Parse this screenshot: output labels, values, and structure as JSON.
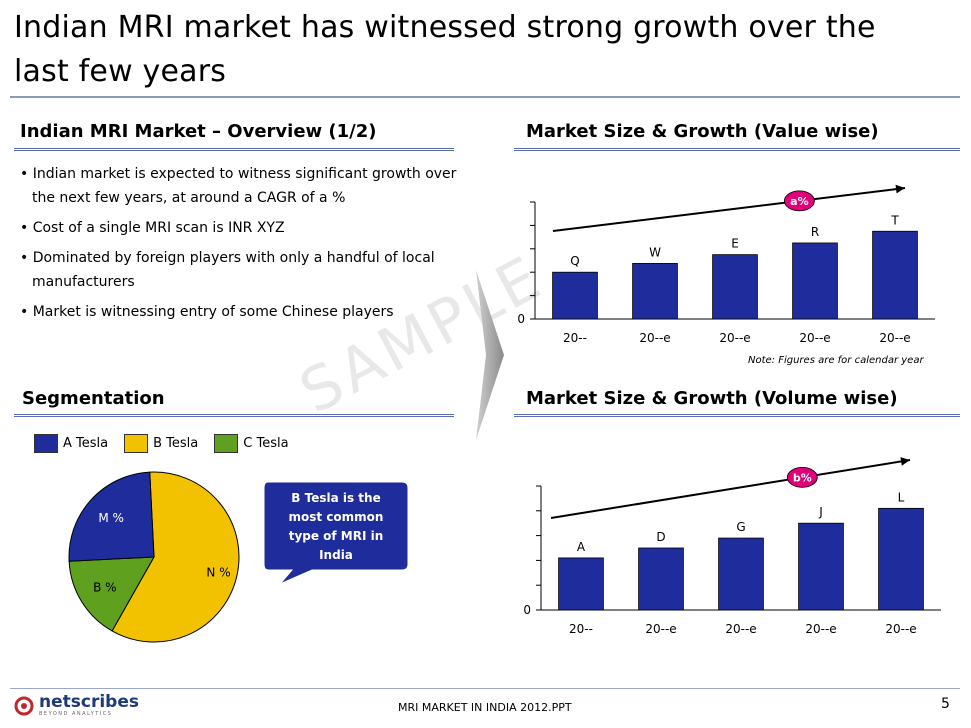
{
  "slide": {
    "title_line1": "Indian MRI market has witnessed strong growth over the",
    "title_line2": "last few years",
    "watermark": "SAMPLE",
    "footer_text": "MRI MARKET IN INDIA 2012.PPT",
    "page_number": "5",
    "logo_text": "netscribes",
    "logo_tagline": "BEYOND ANALYTICS"
  },
  "overview": {
    "heading": "Indian MRI Market – Overview  (1/2)",
    "bullets": [
      "• Indian market is expected to witness significant growth over the  next few years, at around a CAGR of a %",
      "• Cost of a single MRI scan is INR   XYZ",
      "• Dominated by foreign players with only a handful of local manufacturers",
      "• Market is witnessing entry of some Chinese players"
    ]
  },
  "segmentation": {
    "heading": "Segmentation",
    "callout_lines": [
      "B Tesla is the",
      "most common",
      "type of  MRI in",
      "India"
    ]
  },
  "value_chart": {
    "heading": "Market Size & Growth (Value wise)",
    "note": "Note: Figures are for calendar year",
    "growth_badge": "a%"
  },
  "volume_chart": {
    "heading": "Market Size & Growth (Volume wise)",
    "growth_badge": "b%"
  },
  "colors": {
    "bar": "#1f2d9c",
    "a_tesla": "#1f2d9c",
    "b_tesla": "#f2c200",
    "c_tesla": "#5fa01e",
    "badge": "#e0007a"
  },
  "chart_data": [
    {
      "type": "bar",
      "title": "Market Size & Growth (Value wise)",
      "categories": [
        "20--",
        "20--e",
        "20--e",
        "20--e",
        "20--e"
      ],
      "values": [
        1.6,
        1.9,
        2.2,
        2.6,
        3.0
      ],
      "data_labels": [
        "Q",
        "W",
        "E",
        "R",
        "T"
      ],
      "ylim": [
        0,
        4
      ],
      "y_tick_labels": [
        "0"
      ]
    },
    {
      "type": "bar",
      "title": "Market Size & Growth (Volume wise)",
      "categories": [
        "20--",
        "20--e",
        "20--e",
        "20--e",
        "20--e"
      ],
      "values": [
        2.1,
        2.5,
        2.9,
        3.5,
        4.1
      ],
      "data_labels": [
        "A",
        "D",
        "G",
        "J",
        "L"
      ],
      "ylim": [
        0,
        5
      ],
      "y_tick_labels": [
        "0"
      ]
    },
    {
      "type": "pie",
      "title": "",
      "legend": [
        "A Tesla",
        "B Tesla",
        "C  Tesla"
      ],
      "legend_position": "top-left",
      "slices": [
        {
          "name": "A Tesla",
          "label": "M %",
          "value": 25
        },
        {
          "name": "B Tesla",
          "label": "N %",
          "value": 59
        },
        {
          "name": "C Tesla",
          "label": "B %",
          "value": 16
        }
      ]
    }
  ]
}
